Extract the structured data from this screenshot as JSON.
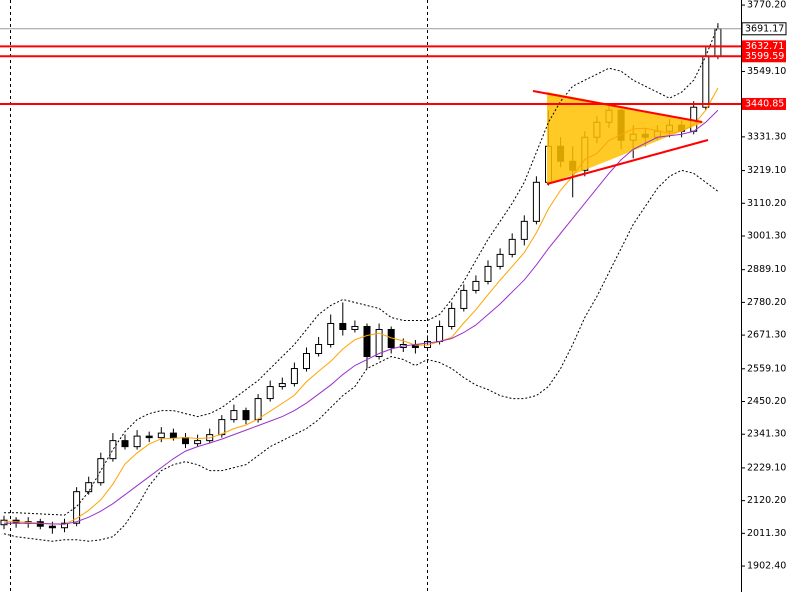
{
  "chart_data": {
    "type": "candlestick",
    "ylim": [
      1816,
      3787
    ],
    "yticks": [
      {
        "value": 3770.2,
        "label": "3770.20"
      },
      {
        "value": 3549.1,
        "label": "3549.10"
      },
      {
        "value": 3331.3,
        "label": "3331.30"
      },
      {
        "value": 3219.1,
        "label": "3219.10"
      },
      {
        "value": 3110.2,
        "label": "3110.20"
      },
      {
        "value": 3001.3,
        "label": "3001.30"
      },
      {
        "value": 2889.1,
        "label": "2889.10"
      },
      {
        "value": 2780.2,
        "label": "2780.20"
      },
      {
        "value": 2671.3,
        "label": "2671.30"
      },
      {
        "value": 2559.1,
        "label": "2559.10"
      },
      {
        "value": 2450.2,
        "label": "2450.20"
      },
      {
        "value": 2341.3,
        "label": "2341.30"
      },
      {
        "value": 2229.1,
        "label": "2229.10"
      },
      {
        "value": 2120.2,
        "label": "2120.20"
      },
      {
        "value": 2011.3,
        "label": "2011.30"
      },
      {
        "value": 1902.4,
        "label": "1902.40"
      }
    ],
    "up_color": "#ffffff",
    "down_color": "#000000",
    "wick_color": "#000000",
    "open": [
      2040,
      2055,
      2045,
      2050,
      2035,
      2030,
      2045,
      2150,
      2180,
      2260,
      2320,
      2300,
      2335,
      2330,
      2345,
      2330,
      2310,
      2320,
      2340,
      2390,
      2420,
      2390,
      2460,
      2500,
      2510,
      2560,
      2610,
      2640,
      2710,
      2690,
      2700,
      2600,
      2690,
      2630,
      2640,
      2630,
      2650,
      2700,
      2760,
      2820,
      2850,
      2900,
      2940,
      2990,
      3050,
      3180,
      3300,
      3250,
      3220,
      3330,
      3380,
      3420,
      3320,
      3340,
      3330,
      3350,
      3370,
      3350,
      3430,
      3600
    ],
    "high": [
      2070,
      2065,
      2065,
      2060,
      2050,
      2060,
      2165,
      2200,
      2280,
      2345,
      2340,
      2355,
      2350,
      2365,
      2360,
      2345,
      2340,
      2360,
      2405,
      2440,
      2430,
      2475,
      2520,
      2530,
      2580,
      2630,
      2665,
      2740,
      2780,
      2720,
      2710,
      2710,
      2700,
      2660,
      2655,
      2670,
      2720,
      2780,
      2840,
      2870,
      2920,
      2960,
      3010,
      3070,
      3200,
      3420,
      3330,
      3300,
      3350,
      3400,
      3440,
      3430,
      3370,
      3360,
      3370,
      3390,
      3385,
      3450,
      3630,
      3710
    ],
    "low": [
      2025,
      2030,
      2030,
      2025,
      2010,
      2015,
      2035,
      2140,
      2170,
      2250,
      2290,
      2290,
      2315,
      2315,
      2320,
      2295,
      2300,
      2310,
      2330,
      2380,
      2375,
      2380,
      2450,
      2490,
      2500,
      2550,
      2600,
      2630,
      2670,
      2680,
      2560,
      2590,
      2610,
      2615,
      2610,
      2620,
      2640,
      2690,
      2750,
      2810,
      2840,
      2890,
      2930,
      2970,
      3040,
      3170,
      3230,
      3130,
      3200,
      3310,
      3360,
      3290,
      3260,
      3300,
      3320,
      3330,
      3330,
      3340,
      3420,
      3590
    ],
    "close": [
      2055,
      2045,
      2050,
      2035,
      2030,
      2045,
      2150,
      2180,
      2260,
      2320,
      2300,
      2335,
      2330,
      2345,
      2330,
      2310,
      2320,
      2340,
      2390,
      2420,
      2390,
      2460,
      2500,
      2510,
      2560,
      2610,
      2640,
      2710,
      2690,
      2700,
      2600,
      2690,
      2630,
      2640,
      2630,
      2650,
      2700,
      2760,
      2820,
      2850,
      2900,
      2940,
      2990,
      3050,
      3180,
      3300,
      3250,
      3220,
      3330,
      3380,
      3420,
      3320,
      3340,
      3330,
      3350,
      3370,
      3350,
      3430,
      3600,
      3691.17
    ],
    "indicators": [
      {
        "color": "#000000",
        "style": "dotted",
        "values": [
          2080,
          2080,
          2078,
          2076,
          2074,
          2072,
          2100,
          2150,
          2220,
          2290,
          2350,
          2390,
          2410,
          2420,
          2420,
          2410,
          2400,
          2410,
          2430,
          2460,
          2490,
          2520,
          2560,
          2600,
          2640,
          2690,
          2740,
          2770,
          2790,
          2780,
          2770,
          2760,
          2730,
          2720,
          2720,
          2720,
          2740,
          2790,
          2850,
          2920,
          2990,
          3050,
          3110,
          3180,
          3280,
          3380,
          3450,
          3500,
          3520,
          3540,
          3560,
          3550,
          3520,
          3500,
          3480,
          3460,
          3480,
          3520,
          3600,
          3700
        ]
      },
      {
        "color": "#000000",
        "style": "dotted",
        "values": [
          2010,
          2000,
          1995,
          1990,
          1985,
          1990,
          1990,
          1985,
          1990,
          2000,
          2040,
          2100,
          2170,
          2220,
          2240,
          2250,
          2240,
          2220,
          2220,
          2230,
          2240,
          2270,
          2300,
          2320,
          2340,
          2360,
          2390,
          2430,
          2470,
          2500,
          2560,
          2580,
          2600,
          2590,
          2570,
          2590,
          2580,
          2560,
          2530,
          2505,
          2490,
          2470,
          2460,
          2460,
          2470,
          2500,
          2560,
          2640,
          2730,
          2800,
          2880,
          2960,
          3040,
          3100,
          3160,
          3200,
          3220,
          3210,
          3180,
          3150
        ]
      },
      {
        "color": "#ffa500",
        "style": "solid",
        "values": [
          2050,
          2050,
          2048,
          2045,
          2043,
          2041,
          2061,
          2088,
          2123,
          2175,
          2242,
          2279,
          2309,
          2326,
          2328,
          2330,
          2327,
          2329,
          2342,
          2360,
          2372,
          2392,
          2418,
          2444,
          2471,
          2516,
          2551,
          2584,
          2625,
          2656,
          2670,
          2678,
          2662,
          2652,
          2638,
          2638,
          2650,
          2664,
          2712,
          2756,
          2806,
          2854,
          2900,
          2946,
          3012,
          3092,
          3154,
          3200,
          3256,
          3276,
          3320,
          3338,
          3358,
          3360,
          3352,
          3342,
          3350,
          3372,
          3420,
          3494
        ]
      },
      {
        "color": "#9932cc",
        "style": "solid",
        "values": [
          2045,
          2045,
          2045,
          2044,
          2043,
          2042,
          2050,
          2065,
          2085,
          2110,
          2140,
          2170,
          2200,
          2230,
          2260,
          2285,
          2300,
          2312,
          2325,
          2340,
          2355,
          2370,
          2385,
          2400,
          2420,
          2445,
          2475,
          2505,
          2540,
          2570,
          2590,
          2610,
          2625,
          2635,
          2640,
          2645,
          2650,
          2660,
          2680,
          2705,
          2740,
          2775,
          2815,
          2855,
          2905,
          2960,
          3010,
          3060,
          3110,
          3160,
          3210,
          3255,
          3290,
          3310,
          3330,
          3335,
          3340,
          3350,
          3380,
          3420
        ]
      }
    ],
    "price_line": {
      "value": 3691.17,
      "color": "#9a9a9a"
    },
    "levels": [
      {
        "value": 3632.71,
        "color": "#ff0000"
      },
      {
        "value": 3599.59,
        "color": "#ff0000"
      },
      {
        "value": 3440.85,
        "color": "#ff0000"
      }
    ]
  }
}
